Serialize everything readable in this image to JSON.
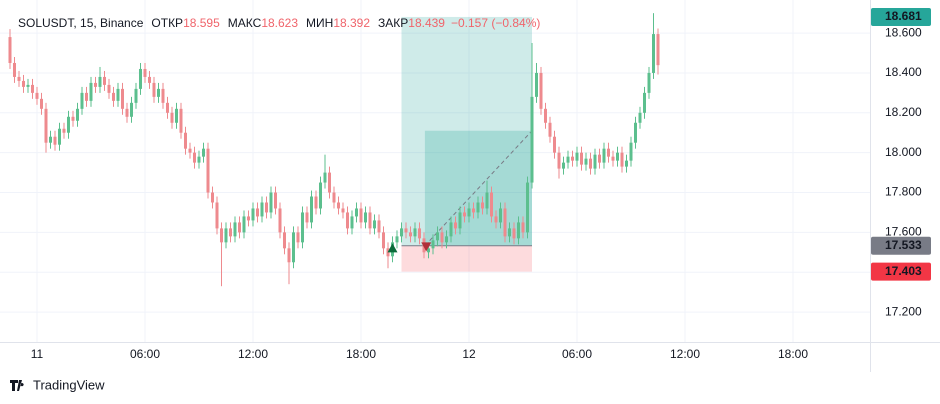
{
  "chart_data": {
    "type": "candlestick",
    "symbol": "SOLUSDT, 15, Binance",
    "ohlc_labels": [
      "ОТКР",
      "МАКС",
      "МИН",
      "ЗАКР"
    ],
    "change": "−0.157 (−0.84%)",
    "up_color": "#5cbf8e",
    "down_color": "#ee8a8e",
    "header_color": "#f0646b",
    "ylim": [
      17.05,
      18.766
    ],
    "yticks": [
      {
        "value": 17.2,
        "label": "17.200"
      },
      {
        "value": 17.4,
        "label": "17.400"
      },
      {
        "value": 17.6,
        "label": "17.600"
      },
      {
        "value": 17.8,
        "label": "17.800"
      },
      {
        "value": 18.0,
        "label": "18.000"
      },
      {
        "value": 18.2,
        "label": "18.200"
      },
      {
        "value": 18.4,
        "label": "18.400"
      },
      {
        "value": 18.6,
        "label": "18.600"
      }
    ],
    "xlim": [
      -2.22,
      191.11
    ],
    "xticks": [
      {
        "value": 6,
        "label": "11"
      },
      {
        "value": 30,
        "label": "06:00"
      },
      {
        "value": 54,
        "label": "12:00"
      },
      {
        "value": 78,
        "label": "18:00"
      },
      {
        "value": 102,
        "label": "12"
      },
      {
        "value": 126,
        "label": "06:00"
      },
      {
        "value": 150,
        "label": "12:00"
      },
      {
        "value": 174,
        "label": "18:00"
      }
    ],
    "grid": true,
    "position": {
      "start": 87,
      "end": 116,
      "entry": 17.533,
      "target": 18.681,
      "stop": 17.403,
      "fill_start": 92.2,
      "fill_price": 18.11,
      "target_color": "#26a69a",
      "entry_color": "#787b86",
      "stop_color": "#f23645"
    },
    "signals": [
      {
        "x": 85,
        "y": 17.52,
        "dir": "up"
      },
      {
        "x": 92.5,
        "y": 17.53,
        "dir": "down"
      }
    ],
    "candles": [
      [
        18.58,
        18.62,
        18.42,
        18.45
      ],
      [
        18.45,
        18.48,
        18.35,
        18.38
      ],
      [
        18.38,
        18.41,
        18.33,
        18.36
      ],
      [
        18.36,
        18.39,
        18.3,
        18.33
      ],
      [
        18.33,
        18.37,
        18.3,
        18.34
      ],
      [
        18.34,
        18.37,
        18.27,
        18.3
      ],
      [
        18.3,
        18.33,
        18.24,
        18.27
      ],
      [
        18.27,
        18.3,
        18.19,
        18.22
      ],
      [
        18.22,
        18.25,
        18.0,
        18.05
      ],
      [
        18.05,
        18.11,
        18.02,
        18.08
      ],
      [
        18.08,
        18.11,
        18.01,
        18.04
      ],
      [
        18.04,
        18.15,
        18.01,
        18.12
      ],
      [
        18.12,
        18.15,
        18.07,
        18.1
      ],
      [
        18.1,
        18.21,
        18.07,
        18.18
      ],
      [
        18.18,
        18.21,
        18.13,
        18.16
      ],
      [
        18.16,
        18.25,
        18.13,
        18.22
      ],
      [
        18.22,
        18.33,
        18.19,
        18.3
      ],
      [
        18.3,
        18.33,
        18.23,
        18.26
      ],
      [
        18.26,
        18.38,
        18.23,
        18.35
      ],
      [
        18.35,
        18.38,
        18.3,
        18.33
      ],
      [
        18.33,
        18.43,
        18.3,
        18.38
      ],
      [
        18.38,
        18.41,
        18.31,
        18.34
      ],
      [
        18.34,
        18.37,
        18.27,
        18.3
      ],
      [
        18.3,
        18.33,
        18.23,
        18.26
      ],
      [
        18.26,
        18.35,
        18.23,
        18.32
      ],
      [
        18.32,
        18.35,
        18.19,
        18.22
      ],
      [
        18.22,
        18.25,
        18.15,
        18.18
      ],
      [
        18.18,
        18.28,
        18.15,
        18.25
      ],
      [
        18.25,
        18.35,
        18.22,
        18.32
      ],
      [
        18.32,
        18.45,
        18.29,
        18.42
      ],
      [
        18.42,
        18.45,
        18.35,
        18.38
      ],
      [
        18.38,
        18.41,
        18.32,
        18.35
      ],
      [
        18.35,
        18.38,
        18.25,
        18.28
      ],
      [
        18.28,
        18.35,
        18.25,
        18.32
      ],
      [
        18.32,
        18.35,
        18.22,
        18.25
      ],
      [
        18.25,
        18.28,
        18.17,
        18.2
      ],
      [
        18.2,
        18.23,
        18.12,
        18.15
      ],
      [
        18.15,
        18.25,
        18.12,
        18.22
      ],
      [
        18.22,
        18.25,
        18.07,
        18.1
      ],
      [
        18.1,
        18.13,
        17.99,
        18.02
      ],
      [
        18.02,
        18.05,
        17.97,
        18.0
      ],
      [
        18.0,
        18.03,
        17.92,
        17.95
      ],
      [
        17.95,
        18.01,
        17.92,
        17.98
      ],
      [
        17.98,
        18.05,
        17.95,
        18.02
      ],
      [
        18.02,
        18.05,
        17.77,
        17.8
      ],
      [
        17.8,
        17.83,
        17.72,
        17.75
      ],
      [
        17.75,
        17.78,
        17.59,
        17.62
      ],
      [
        17.62,
        17.65,
        17.33,
        17.55
      ],
      [
        17.55,
        17.65,
        17.52,
        17.62
      ],
      [
        17.62,
        17.65,
        17.55,
        17.58
      ],
      [
        17.58,
        17.68,
        17.55,
        17.65
      ],
      [
        17.65,
        17.68,
        17.57,
        17.6
      ],
      [
        17.6,
        17.71,
        17.57,
        17.68
      ],
      [
        17.68,
        17.71,
        17.63,
        17.66
      ],
      [
        17.66,
        17.75,
        17.63,
        17.72
      ],
      [
        17.72,
        17.75,
        17.65,
        17.68
      ],
      [
        17.68,
        17.78,
        17.65,
        17.75
      ],
      [
        17.75,
        17.78,
        17.67,
        17.7
      ],
      [
        17.7,
        17.83,
        17.67,
        17.8
      ],
      [
        17.8,
        17.83,
        17.69,
        17.72
      ],
      [
        17.72,
        17.75,
        17.57,
        17.6
      ],
      [
        17.6,
        17.63,
        17.49,
        17.52
      ],
      [
        17.52,
        17.55,
        17.34,
        17.45
      ],
      [
        17.45,
        17.63,
        17.42,
        17.6
      ],
      [
        17.6,
        17.63,
        17.52,
        17.55
      ],
      [
        17.55,
        17.73,
        17.52,
        17.7
      ],
      [
        17.7,
        17.73,
        17.62,
        17.65
      ],
      [
        17.65,
        17.81,
        17.62,
        17.78
      ],
      [
        17.78,
        17.81,
        17.69,
        17.72
      ],
      [
        17.72,
        17.88,
        17.69,
        17.85
      ],
      [
        17.85,
        17.99,
        17.82,
        17.9
      ],
      [
        17.9,
        17.93,
        17.77,
        17.8
      ],
      [
        17.8,
        17.83,
        17.72,
        17.75
      ],
      [
        17.75,
        17.78,
        17.69,
        17.72
      ],
      [
        17.72,
        17.75,
        17.67,
        17.7
      ],
      [
        17.7,
        17.73,
        17.59,
        17.62
      ],
      [
        17.62,
        17.71,
        17.59,
        17.68
      ],
      [
        17.68,
        17.75,
        17.65,
        17.72
      ],
      [
        17.72,
        17.75,
        17.62,
        17.65
      ],
      [
        17.65,
        17.73,
        17.62,
        17.7
      ],
      [
        17.7,
        17.73,
        17.59,
        17.62
      ],
      [
        17.62,
        17.69,
        17.59,
        17.66
      ],
      [
        17.66,
        17.69,
        17.57,
        17.6
      ],
      [
        17.6,
        17.63,
        17.49,
        17.52
      ],
      [
        17.52,
        17.55,
        17.42,
        17.48
      ],
      [
        17.48,
        17.58,
        17.45,
        17.55
      ],
      [
        17.55,
        17.61,
        17.52,
        17.58
      ],
      [
        17.58,
        17.65,
        17.55,
        17.62
      ],
      [
        17.62,
        17.65,
        17.57,
        17.6
      ],
      [
        17.6,
        17.63,
        17.55,
        17.58
      ],
      [
        17.58,
        17.65,
        17.55,
        17.62
      ],
      [
        17.62,
        17.65,
        17.54,
        17.57
      ],
      [
        17.57,
        17.6,
        17.47,
        17.5
      ],
      [
        17.5,
        17.55,
        17.47,
        17.52
      ],
      [
        17.52,
        17.59,
        17.49,
        17.56
      ],
      [
        17.56,
        17.63,
        17.53,
        17.6
      ],
      [
        17.6,
        17.63,
        17.52,
        17.55
      ],
      [
        17.55,
        17.61,
        17.52,
        17.58
      ],
      [
        17.58,
        17.68,
        17.55,
        17.65
      ],
      [
        17.65,
        17.68,
        17.59,
        17.62
      ],
      [
        17.62,
        17.73,
        17.59,
        17.7
      ],
      [
        17.7,
        17.73,
        17.65,
        17.68
      ],
      [
        17.68,
        17.75,
        17.65,
        17.72
      ],
      [
        17.72,
        17.75,
        17.67,
        17.7
      ],
      [
        17.7,
        17.78,
        17.67,
        17.75
      ],
      [
        17.75,
        17.78,
        17.69,
        17.72
      ],
      [
        17.72,
        17.86,
        17.69,
        17.8
      ],
      [
        17.8,
        17.83,
        17.65,
        17.68
      ],
      [
        17.68,
        17.71,
        17.62,
        17.65
      ],
      [
        17.65,
        17.75,
        17.62,
        17.72
      ],
      [
        17.72,
        17.75,
        17.55,
        17.58
      ],
      [
        17.58,
        17.65,
        17.55,
        17.62
      ],
      [
        17.62,
        17.65,
        17.54,
        17.57
      ],
      [
        17.57,
        17.68,
        17.54,
        17.65
      ],
      [
        17.65,
        17.68,
        17.57,
        17.6
      ],
      [
        17.6,
        17.88,
        17.57,
        17.85
      ],
      [
        17.85,
        18.55,
        17.82,
        18.28
      ],
      [
        18.28,
        18.45,
        18.25,
        18.4
      ],
      [
        18.4,
        18.43,
        18.19,
        18.22
      ],
      [
        18.22,
        18.25,
        18.12,
        18.15
      ],
      [
        18.15,
        18.18,
        18.05,
        18.08
      ],
      [
        18.08,
        18.11,
        17.97,
        18.0
      ],
      [
        18.0,
        18.03,
        17.87,
        17.92
      ],
      [
        17.92,
        17.98,
        17.89,
        17.95
      ],
      [
        17.95,
        18.01,
        17.92,
        17.98
      ],
      [
        17.98,
        18.01,
        17.93,
        17.96
      ],
      [
        17.96,
        18.03,
        17.93,
        18.0
      ],
      [
        18.0,
        18.03,
        17.91,
        17.94
      ],
      [
        17.94,
        18.0,
        17.91,
        17.97
      ],
      [
        17.97,
        18.0,
        17.89,
        17.92
      ],
      [
        17.92,
        18.02,
        17.89,
        17.99
      ],
      [
        17.99,
        18.02,
        17.92,
        17.95
      ],
      [
        17.95,
        18.05,
        17.92,
        18.02
      ],
      [
        18.02,
        18.05,
        17.95,
        17.98
      ],
      [
        17.98,
        18.01,
        17.93,
        17.96
      ],
      [
        17.96,
        18.03,
        17.93,
        18.0
      ],
      [
        18.0,
        18.03,
        17.9,
        17.93
      ],
      [
        17.93,
        17.99,
        17.9,
        17.96
      ],
      [
        17.96,
        18.08,
        17.93,
        18.05
      ],
      [
        18.05,
        18.18,
        18.02,
        18.15
      ],
      [
        18.15,
        18.23,
        18.12,
        18.2
      ],
      [
        18.2,
        18.33,
        18.17,
        18.3
      ],
      [
        18.3,
        18.43,
        18.27,
        18.4
      ],
      [
        18.4,
        18.7,
        18.37,
        18.595
      ],
      [
        18.595,
        18.623,
        18.392,
        18.439
      ]
    ]
  },
  "branding": "TradingView"
}
